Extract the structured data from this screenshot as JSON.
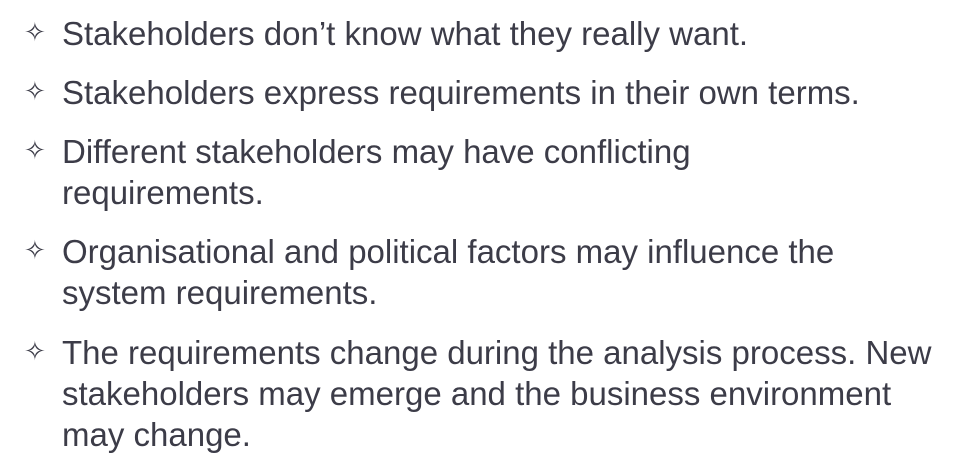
{
  "bullet_icon": "four-pointed-star-icon",
  "bullets": [
    {
      "text": "Stakeholders don’t know what they really want."
    },
    {
      "text": "Stakeholders express requirements in their own terms."
    },
    {
      "text": "Different stakeholders may have conflicting requirements."
    },
    {
      "text": "Organisational and political factors may influence the system requirements."
    },
    {
      "text": "The requirements change during the analysis process. New stakeholders may emerge and the business environment may change."
    }
  ]
}
